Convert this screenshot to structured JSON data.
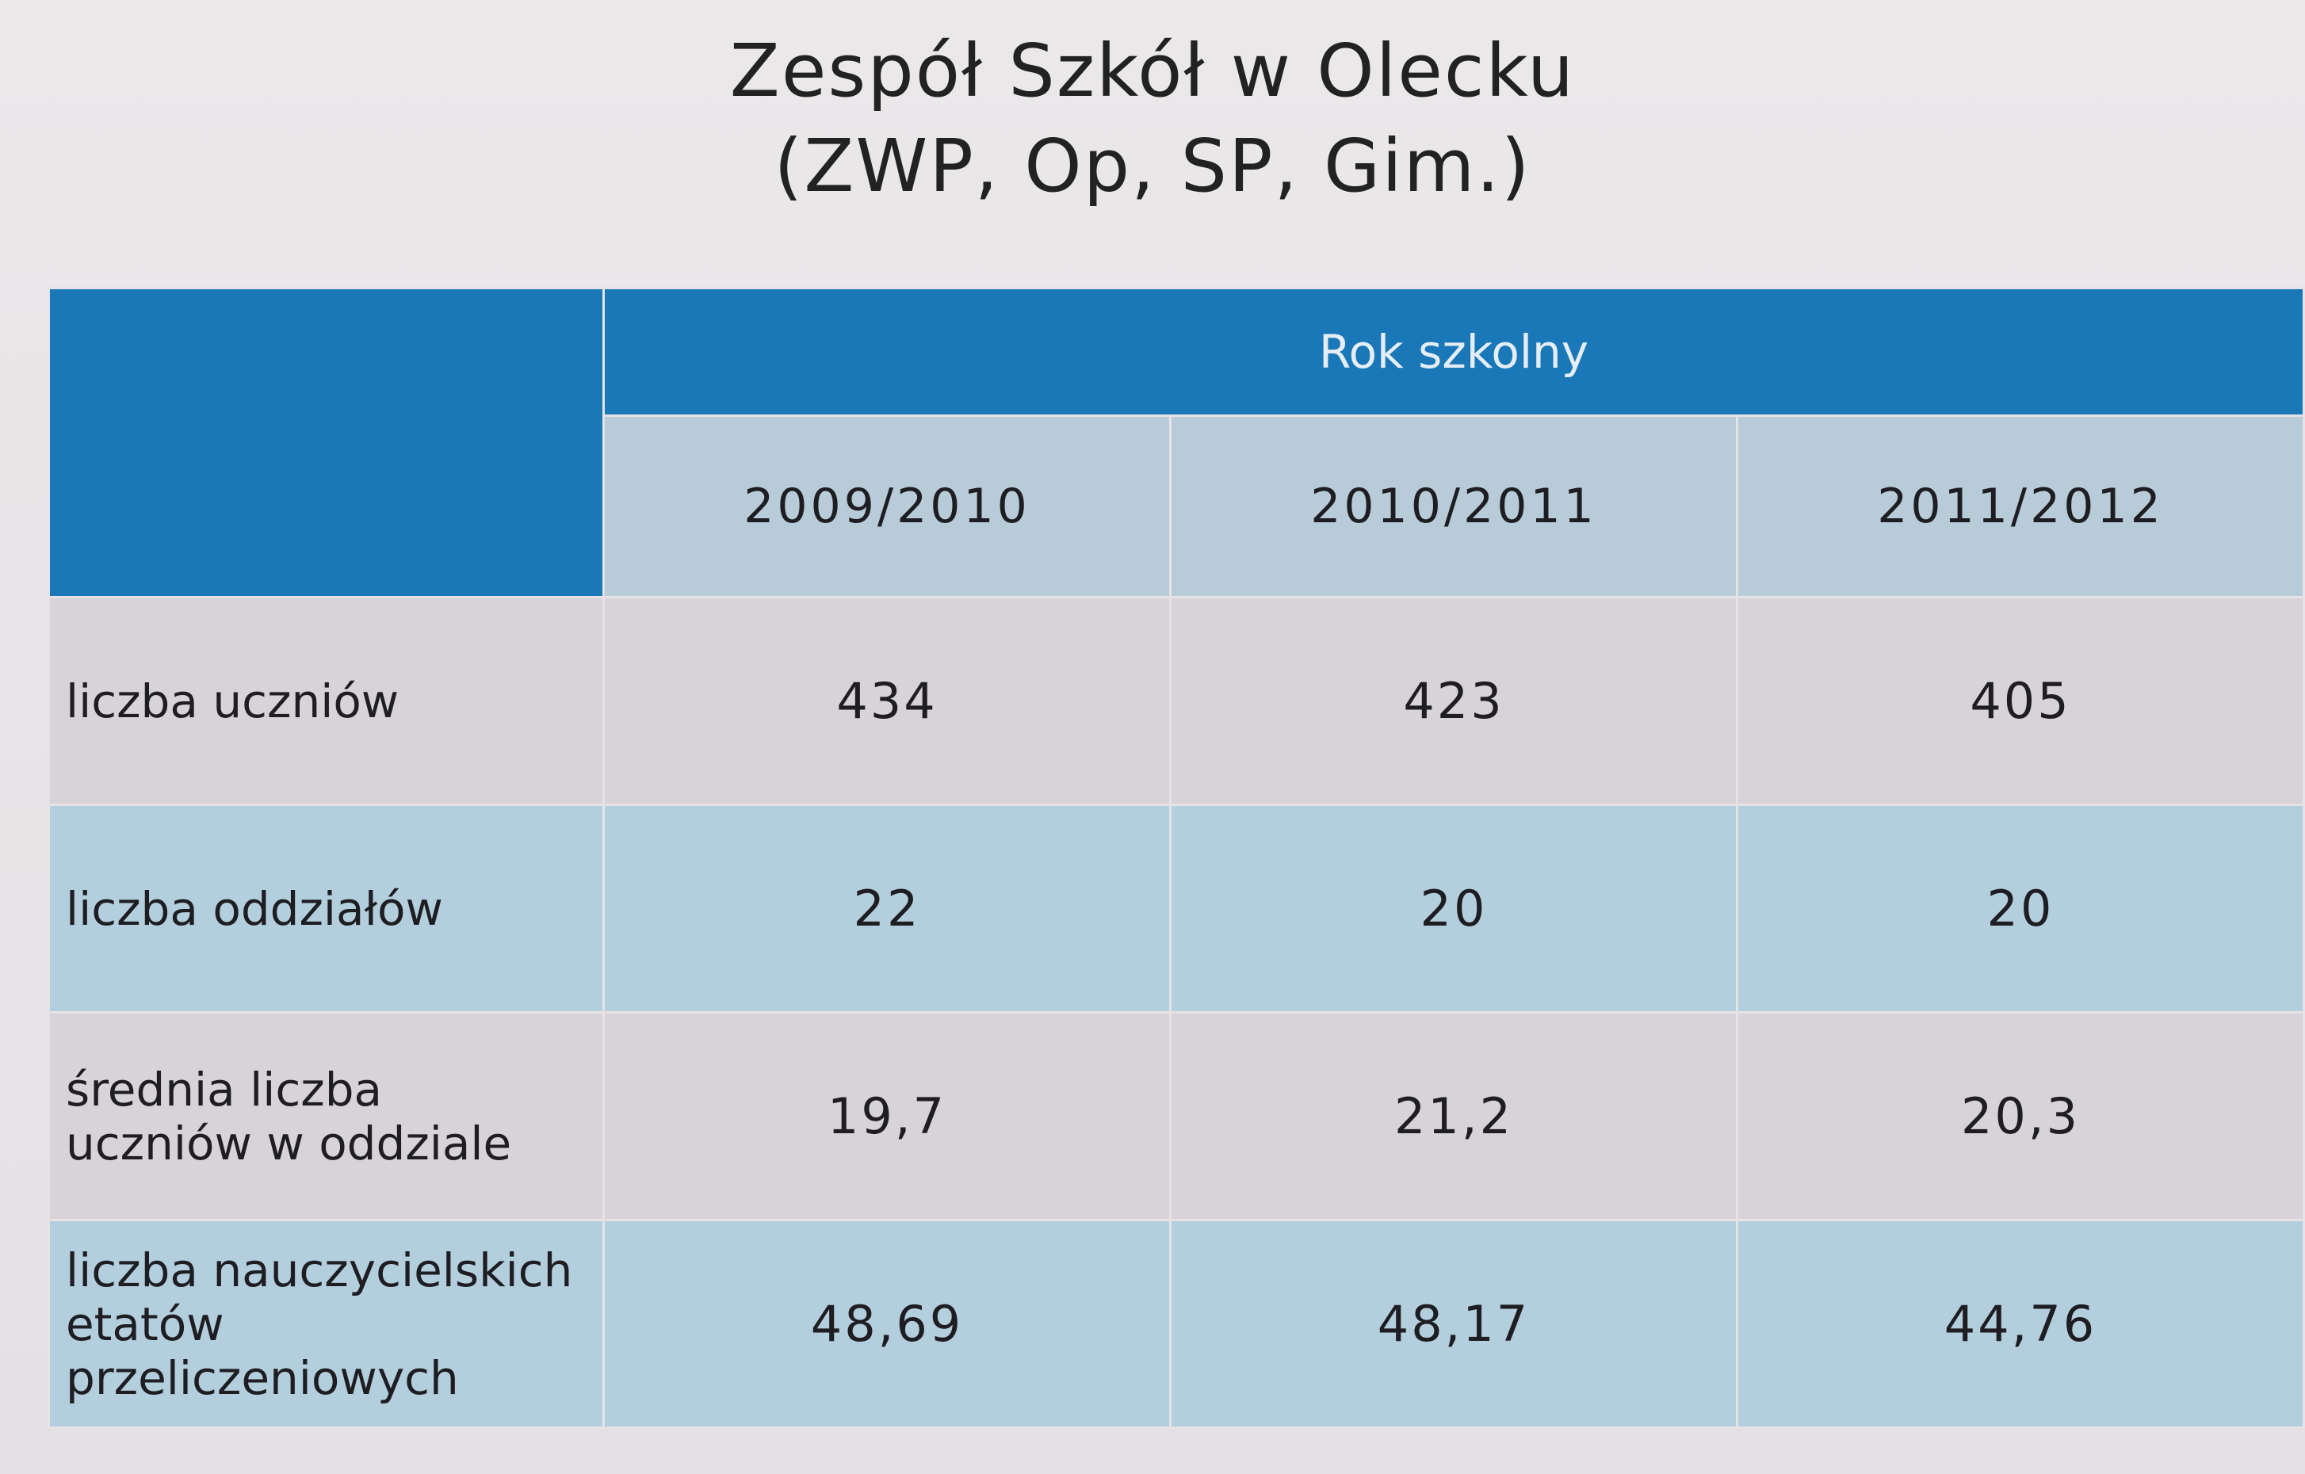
{
  "header": {
    "title": [
      "Zespół Szkół w Olecku",
      "(ZWP, Op, SP, Gim.)"
    ]
  },
  "table": {
    "group_header": "Rok szkolny",
    "columns": [
      "2009/2010",
      "2010/2011",
      "2011/2012"
    ],
    "rows": [
      [
        "liczba uczniów",
        "434",
        "423",
        "405"
      ],
      [
        "liczba oddziałów",
        "22",
        "20",
        "20"
      ],
      [
        "średnia liczba uczniów w oddziale",
        "19,7",
        "21,2",
        "20,3"
      ],
      [
        "liczba nauczycielskich etatów przeliczeniowych",
        "48,69",
        "48,17",
        "44,76"
      ]
    ]
  }
}
